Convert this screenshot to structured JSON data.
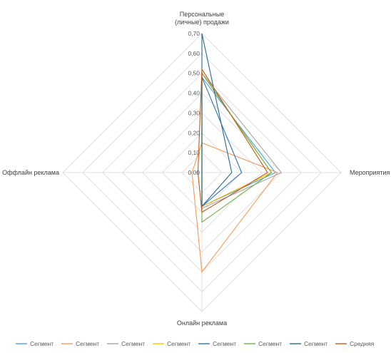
{
  "chart_data": {
    "type": "radar",
    "axes": [
      {
        "label_lines": [
          "Персональные",
          "(личные) продажи"
        ]
      },
      {
        "label_lines": [
          "Мероприятия"
        ]
      },
      {
        "label_lines": [
          "Онлайн реклама"
        ]
      },
      {
        "label_lines": [
          "Оффлайн реклама"
        ]
      }
    ],
    "rlim": [
      0,
      0.7
    ],
    "ticks": [
      "0,00",
      "0,10",
      "0,20",
      "0,30",
      "0,40",
      "0,50",
      "0,60",
      "0,70"
    ],
    "grid": true,
    "legend_position": "bottom",
    "series": [
      {
        "name": "Сегмент",
        "color": "#4aa3df",
        "values": [
          0.48,
          0.37,
          0.17,
          0.0
        ]
      },
      {
        "name": "Сегмент",
        "color": "#f59a57",
        "values": [
          0.15,
          0.38,
          0.5,
          0.05
        ]
      },
      {
        "name": "Сегмент",
        "color": "#a5a5a5",
        "values": [
          0.5,
          0.4,
          0.18,
          0.0
        ]
      },
      {
        "name": "Сегмент",
        "color": "#ffc000",
        "values": [
          0.5,
          0.35,
          0.17,
          0.0
        ]
      },
      {
        "name": "Сегмент",
        "color": "#2e75b6",
        "values": [
          0.48,
          0.2,
          0.17,
          0.0
        ]
      },
      {
        "name": "Сегмент",
        "color": "#70ad47",
        "values": [
          0.5,
          0.35,
          0.25,
          0.0
        ]
      },
      {
        "name": "Сегмент",
        "color": "#2a6a8f",
        "values": [
          0.7,
          0.15,
          0.17,
          0.0
        ]
      },
      {
        "name": "Средняя",
        "color": "#c55a11",
        "values": [
          0.52,
          0.33,
          0.2,
          0.02
        ]
      }
    ]
  }
}
